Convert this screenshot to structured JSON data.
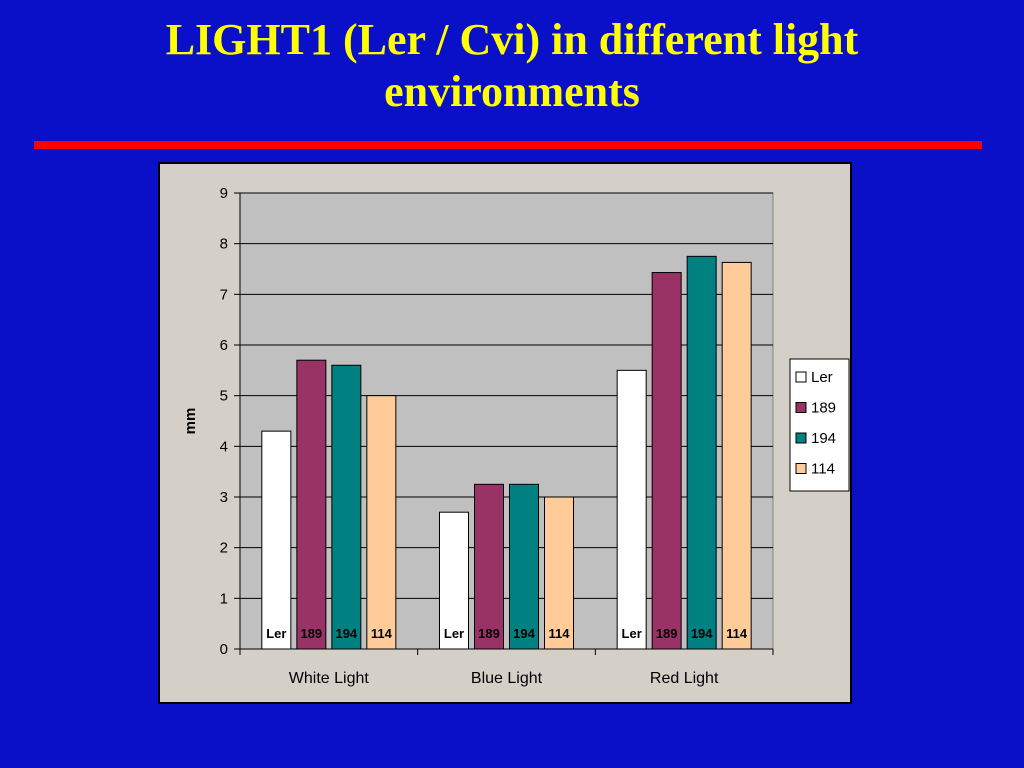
{
  "slide": {
    "title": "LIGHT1 (Ler / Cvi) in different light environments",
    "background_color": "#0a10c8",
    "title_color": "#ffff00",
    "rule_color": "#ff0000"
  },
  "chart_data": {
    "type": "bar",
    "title": "",
    "xlabel": "",
    "ylabel": "mm",
    "ylim": [
      0,
      9
    ],
    "yticks": [
      0,
      1,
      2,
      3,
      4,
      5,
      6,
      7,
      8,
      9
    ],
    "grid": true,
    "legend_position": "right",
    "categories": [
      "White Light",
      "Blue Light",
      "Red Light"
    ],
    "series": [
      {
        "name": "Ler",
        "color": "#ffffff",
        "values": [
          4.3,
          2.7,
          5.5
        ]
      },
      {
        "name": "189",
        "color": "#993366",
        "values": [
          5.7,
          3.25,
          7.43
        ]
      },
      {
        "name": "194",
        "color": "#008080",
        "values": [
          5.6,
          3.25,
          7.75
        ]
      },
      {
        "name": "114",
        "color": "#ffcc99",
        "values": [
          5.0,
          3.0,
          7.63
        ]
      }
    ],
    "plot_area_color": "#c0c0c0",
    "chart_area_color": "#d4d0c8"
  }
}
